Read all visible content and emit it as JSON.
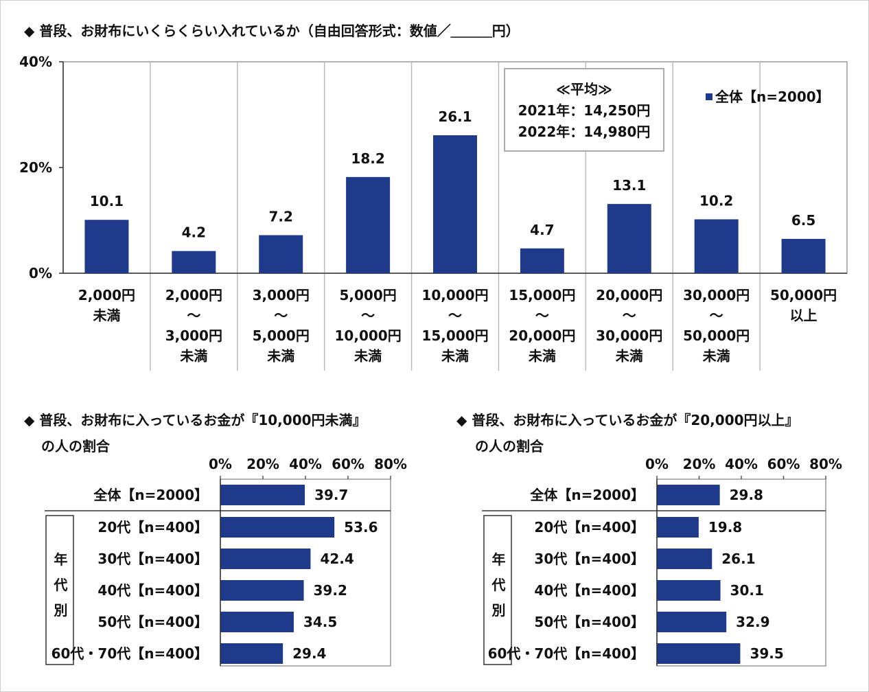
{
  "chart_data": [
    {
      "type": "bar",
      "title": "◆ 普段、お財布にいくらくらい入れているか（自由回答形式：数値／＿＿＿円）",
      "categories": [
        [
          "2,000円",
          "未満"
        ],
        [
          "2,000円",
          "～",
          "3,000円",
          "未満"
        ],
        [
          "3,000円",
          "～",
          "5,000円",
          "未満"
        ],
        [
          "5,000円",
          "～",
          "10,000円",
          "未満"
        ],
        [
          "10,000円",
          "～",
          "15,000円",
          "未満"
        ],
        [
          "15,000円",
          "～",
          "20,000円",
          "未満"
        ],
        [
          "20,000円",
          "～",
          "30,000円",
          "未満"
        ],
        [
          "30,000円",
          "～",
          "50,000円",
          "未満"
        ],
        [
          "50,000円",
          "以上"
        ]
      ],
      "series": [
        {
          "name": "全体【n=2000】",
          "color": "#1f3a8a",
          "values": [
            10.1,
            4.2,
            7.2,
            18.2,
            26.1,
            4.7,
            13.1,
            10.2,
            6.5
          ]
        }
      ],
      "ylim": [
        0,
        40
      ],
      "yticks": [
        {
          "value": 0,
          "label": "0%"
        },
        {
          "value": 20,
          "label": "20%"
        },
        {
          "value": 40,
          "label": "40%"
        }
      ],
      "annotation": [
        "≪平均≫",
        "2021年：14,250円",
        "2022年：14,980円"
      ],
      "legend": "upper right"
    },
    {
      "type": "barh",
      "title": [
        "◆ 普段、お財布に入っているお金が『10,000円未満』",
        "の人の割合"
      ],
      "categories": [
        "全体【n=2000】",
        "20代【n=400】",
        "30代【n=400】",
        "40代【n=400】",
        "50代【n=400】",
        "60代・70代【n=400】"
      ],
      "group_label": "年代別",
      "series": [
        {
          "name": "全体【n=2000】",
          "color": "#1f3a8a",
          "values": [
            39.7,
            53.6,
            42.4,
            39.2,
            34.5,
            29.4
          ]
        }
      ],
      "xlim": [
        0,
        80
      ],
      "xticks": [
        {
          "value": 0,
          "label": "0%"
        },
        {
          "value": 20,
          "label": "20%"
        },
        {
          "value": 40,
          "label": "40%"
        },
        {
          "value": 60,
          "label": "60%"
        },
        {
          "value": 80,
          "label": "80%"
        }
      ]
    },
    {
      "type": "barh",
      "title": [
        "◆ 普段、お財布に入っているお金が『20,000円以上』",
        "の人の割合"
      ],
      "categories": [
        "全体【n=2000】",
        "20代【n=400】",
        "30代【n=400】",
        "40代【n=400】",
        "50代【n=400】",
        "60代・70代【n=400】"
      ],
      "group_label": "年代別",
      "series": [
        {
          "name": "全体【n=2000】",
          "color": "#1f3a8a",
          "values": [
            29.8,
            19.8,
            26.1,
            30.1,
            32.9,
            39.5
          ]
        }
      ],
      "xlim": [
        0,
        80
      ],
      "xticks": [
        {
          "value": 0,
          "label": "0%"
        },
        {
          "value": 20,
          "label": "20%"
        },
        {
          "value": 40,
          "label": "40%"
        },
        {
          "value": 60,
          "label": "60%"
        },
        {
          "value": 80,
          "label": "80%"
        }
      ]
    }
  ]
}
